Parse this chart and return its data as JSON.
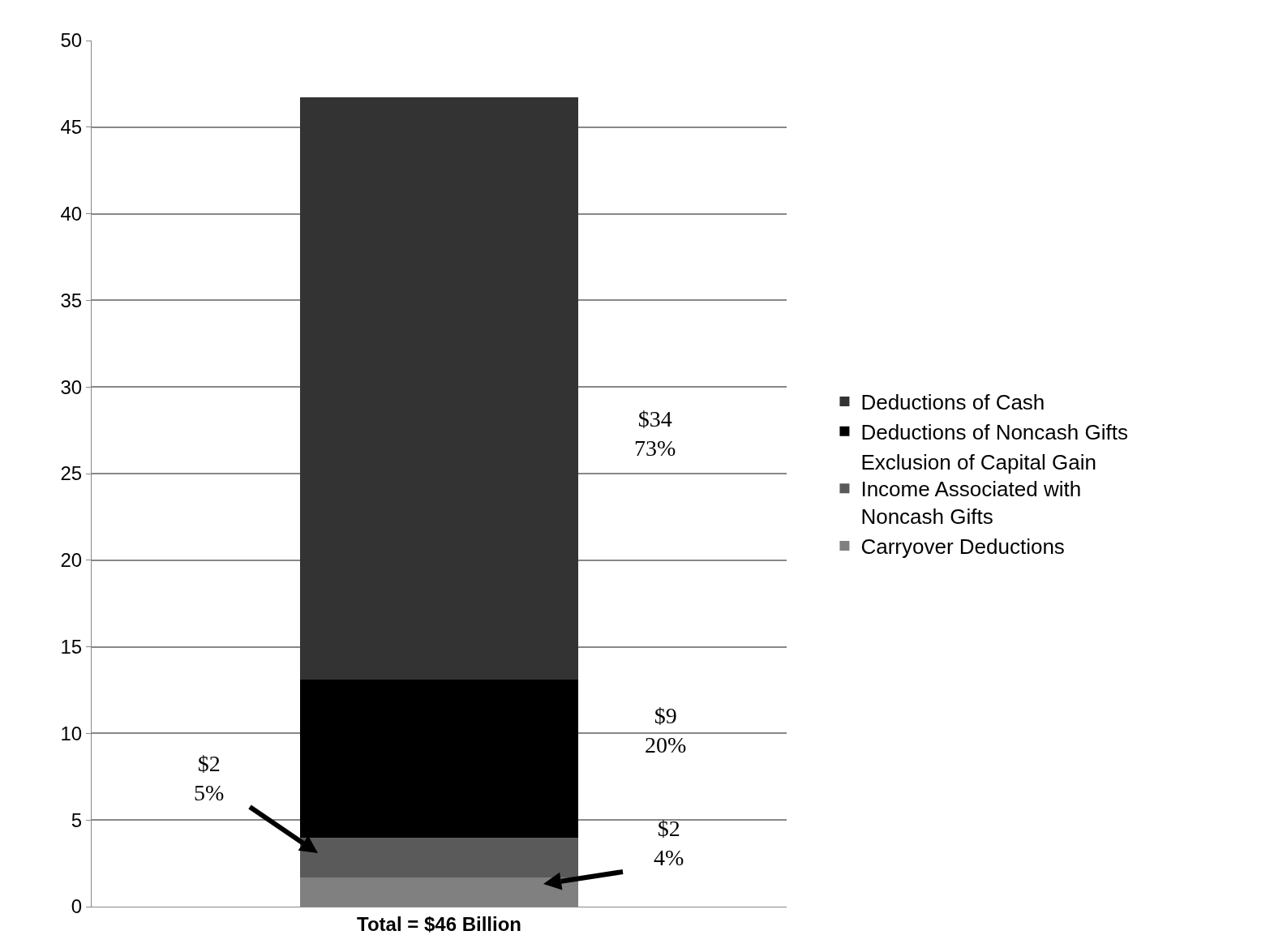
{
  "chart_data": {
    "type": "bar",
    "stacked": true,
    "categories": [
      "Total = $46 Billion"
    ],
    "series": [
      {
        "name": "Carryover Deductions",
        "color": "#808080",
        "values": [
          1.7
        ]
      },
      {
        "name": "Exclusion of Capital Gain Income Associated with Noncash Gifts",
        "color": "#5a5a5a",
        "values": [
          2.3
        ]
      },
      {
        "name": "Deductions of Noncash Gifts",
        "color": "#000000",
        "values": [
          9.1
        ]
      },
      {
        "name": "Deductions of Cash",
        "color": "#333333",
        "values": [
          33.6
        ]
      }
    ],
    "ylim": [
      0,
      50
    ],
    "yticks": [
      0,
      5,
      10,
      15,
      20,
      25,
      30,
      35,
      40,
      45,
      50
    ],
    "grid": "y",
    "legend": "right",
    "annotations": [
      "$34\n73%",
      "$9\n20%",
      "$2\n5%",
      "$2\n4%"
    ]
  }
}
